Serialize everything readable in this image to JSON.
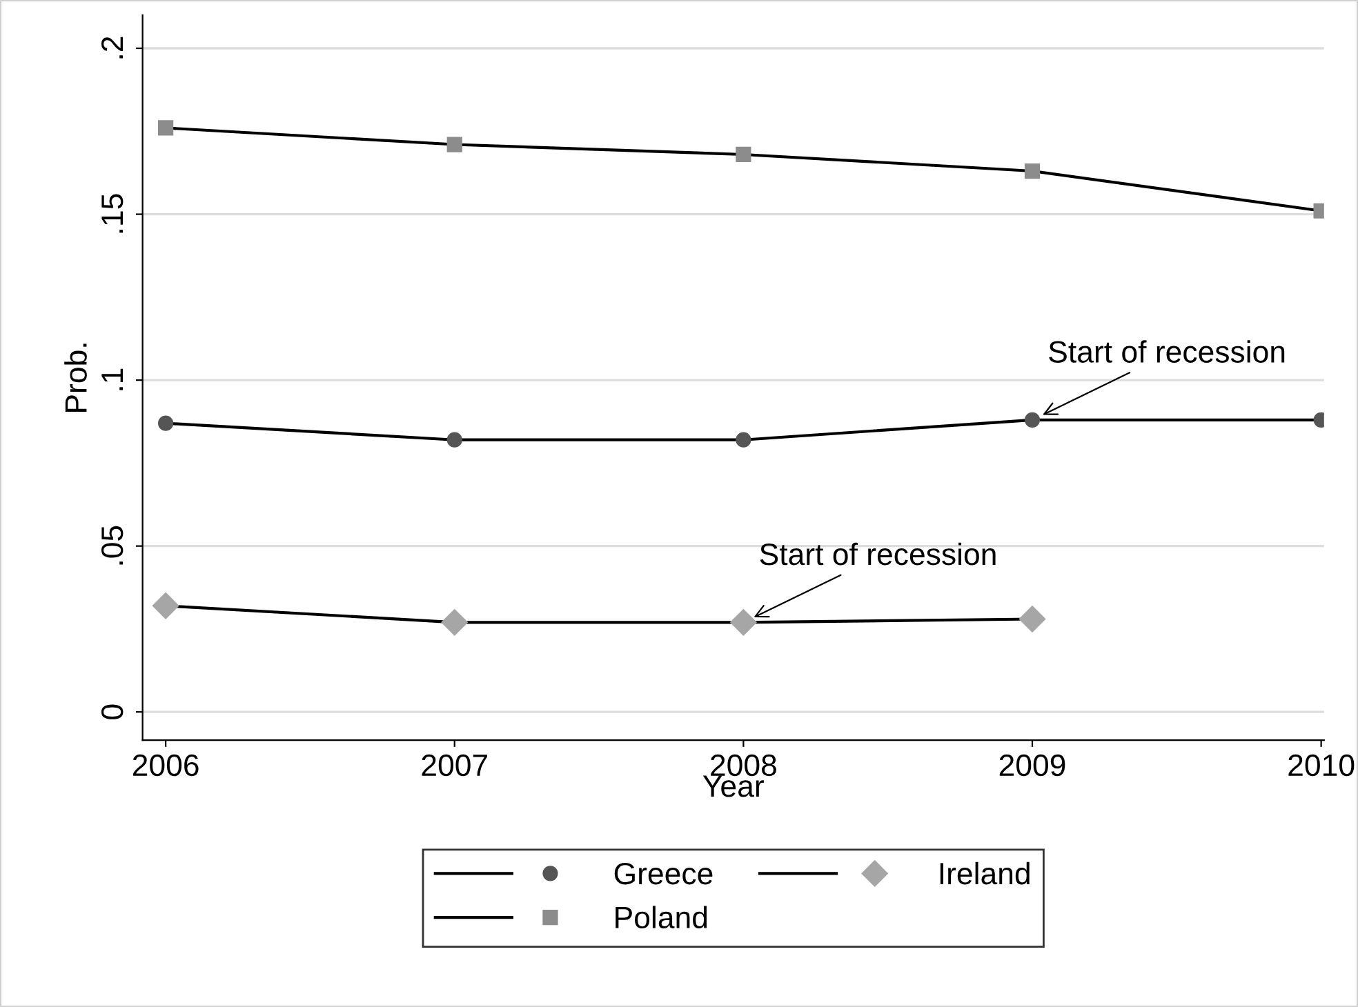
{
  "chart_data": {
    "type": "line",
    "xlabel": "Year",
    "ylabel": "Prob.",
    "x": [
      2006,
      2007,
      2008,
      2009,
      2010
    ],
    "series": [
      {
        "name": "Greece",
        "color": "#555555",
        "marker": "circle",
        "values": [
          0.087,
          0.082,
          0.082,
          0.088,
          0.088
        ]
      },
      {
        "name": "Ireland",
        "color": "#a6a6a6",
        "marker": "diamond",
        "values": [
          0.032,
          0.027,
          0.027,
          0.028,
          null
        ]
      },
      {
        "name": "Poland",
        "color": "#8c8c8c",
        "marker": "square",
        "values": [
          0.176,
          0.171,
          0.168,
          0.163,
          0.151
        ]
      }
    ],
    "xlim": [
      2005.92,
      2010.01
    ],
    "xticks": [
      2006,
      2007,
      2008,
      2009,
      2010
    ],
    "ylim": [
      -0.0085,
      0.21
    ],
    "yticks": [
      {
        "value": 0,
        "label": "0"
      },
      {
        "value": 0.05,
        "label": ".05"
      },
      {
        "value": 0.1,
        "label": ".1"
      },
      {
        "value": 0.15,
        "label": ".15"
      },
      {
        "value": 0.2,
        "label": ".2"
      }
    ],
    "grid": "y",
    "legend": "bottom",
    "line_style": "solid",
    "annotations": [
      {
        "text": "Start of recession",
        "x": 2009,
        "y": 0.088
      },
      {
        "text": "Start of recession",
        "x": 2008,
        "y": 0.027
      }
    ]
  }
}
